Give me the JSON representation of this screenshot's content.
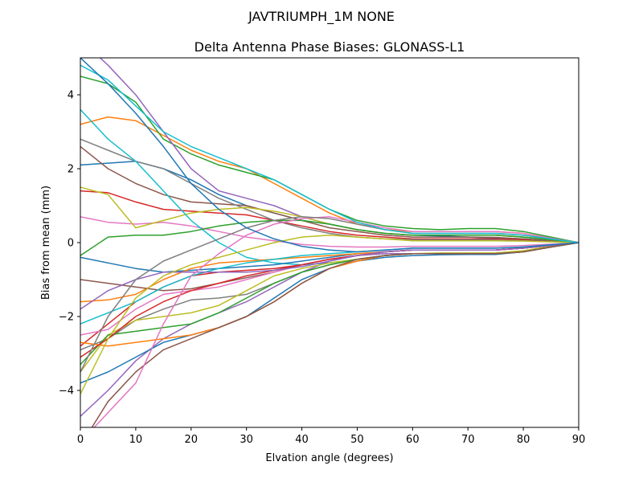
{
  "chart_data": {
    "type": "line",
    "suptitle": "JAVTRIUMPH_1M   NONE",
    "title": "Delta Antenna Phase Biases: GLONASS-L1",
    "xlabel": "Elvation angle (degrees)",
    "ylabel": "Bias from mean (mm)",
    "xlim": [
      0,
      90
    ],
    "ylim": [
      -5,
      5
    ],
    "x_ticks": [
      0,
      10,
      20,
      30,
      40,
      50,
      60,
      70,
      80,
      90
    ],
    "y_ticks": [
      -4,
      -2,
      0,
      2,
      4
    ],
    "y_tick_labels": [
      "−4",
      "−2",
      "0",
      "2",
      "4"
    ],
    "grid": false,
    "x": [
      0,
      5,
      10,
      15,
      20,
      25,
      30,
      35,
      40,
      45,
      50,
      55,
      60,
      65,
      70,
      75,
      80,
      85,
      90
    ],
    "series_colors": [
      "#1f77b4",
      "#ff7f0e",
      "#2ca02c",
      "#d62728",
      "#9467bd",
      "#8c564b",
      "#e377c2",
      "#7f7f7f",
      "#bcbd22",
      "#17becf"
    ],
    "series": [
      {
        "values": [
          2.1,
          2.15,
          2.2,
          2.0,
          1.7,
          1.3,
          1.0,
          0.8,
          0.6,
          0.5,
          0.35,
          0.25,
          0.2,
          0.18,
          0.15,
          0.12,
          0.1,
          0.05,
          0
        ]
      },
      {
        "values": [
          3.2,
          3.4,
          3.3,
          2.9,
          2.5,
          2.2,
          2.0,
          1.6,
          1.2,
          0.8,
          0.5,
          0.35,
          0.3,
          0.3,
          0.3,
          0.3,
          0.25,
          0.12,
          0
        ]
      },
      {
        "values": [
          4.5,
          4.3,
          3.8,
          2.8,
          2.4,
          2.1,
          1.9,
          1.7,
          1.3,
          0.9,
          0.6,
          0.45,
          0.38,
          0.35,
          0.38,
          0.38,
          0.3,
          0.15,
          0
        ]
      },
      {
        "values": [
          1.4,
          1.35,
          1.1,
          0.9,
          0.85,
          0.8,
          0.75,
          0.6,
          0.45,
          0.3,
          0.2,
          0.15,
          0.1,
          0.1,
          0.1,
          0.1,
          0.08,
          0.04,
          0
        ]
      },
      {
        "values": [
          5.5,
          4.8,
          4.0,
          3.0,
          2.0,
          1.4,
          1.2,
          1.0,
          0.7,
          0.5,
          0.35,
          0.25,
          0.2,
          0.2,
          0.2,
          0.2,
          0.15,
          0.08,
          0
        ]
      },
      {
        "values": [
          2.6,
          2.0,
          1.6,
          1.3,
          1.1,
          1.05,
          1.0,
          0.8,
          0.6,
          0.4,
          0.3,
          0.2,
          0.15,
          0.15,
          0.15,
          0.14,
          0.1,
          0.05,
          0
        ]
      },
      {
        "values": [
          0.7,
          0.55,
          0.5,
          0.55,
          0.45,
          0.3,
          0.15,
          0.05,
          -0.05,
          -0.1,
          -0.12,
          -0.12,
          -0.1,
          -0.1,
          -0.1,
          -0.1,
          -0.08,
          -0.04,
          0
        ]
      },
      {
        "values": [
          2.8,
          2.5,
          2.2,
          2.0,
          1.6,
          1.2,
          0.9,
          0.6,
          0.4,
          0.25,
          0.15,
          0.1,
          0.08,
          0.08,
          0.08,
          0.07,
          0.05,
          0.03,
          0
        ]
      },
      {
        "values": [
          1.5,
          1.3,
          0.4,
          0.6,
          0.8,
          0.9,
          0.95,
          0.85,
          0.7,
          0.5,
          0.35,
          0.25,
          0.2,
          0.2,
          0.2,
          0.2,
          0.15,
          0.08,
          0
        ]
      },
      {
        "values": [
          3.6,
          2.8,
          2.2,
          1.4,
          0.6,
          0.0,
          -0.4,
          -0.55,
          -0.6,
          -0.55,
          -0.45,
          -0.35,
          -0.3,
          -0.3,
          -0.3,
          -0.3,
          -0.25,
          -0.12,
          0
        ]
      },
      {
        "values": [
          -0.4,
          -0.55,
          -0.7,
          -0.8,
          -0.75,
          -0.7,
          -0.65,
          -0.6,
          -0.5,
          -0.4,
          -0.3,
          -0.25,
          -0.2,
          -0.2,
          -0.2,
          -0.2,
          -0.15,
          -0.08,
          0
        ]
      },
      {
        "values": [
          -1.6,
          -1.55,
          -1.4,
          -1.0,
          -0.7,
          -0.55,
          -0.5,
          -0.45,
          -0.4,
          -0.35,
          -0.3,
          -0.25,
          -0.2,
          -0.2,
          -0.2,
          -0.2,
          -0.15,
          -0.08,
          0
        ]
      },
      {
        "values": [
          -0.35,
          0.15,
          0.2,
          0.2,
          0.3,
          0.45,
          0.55,
          0.6,
          0.6,
          0.5,
          0.35,
          0.25,
          0.2,
          0.2,
          0.2,
          0.2,
          0.15,
          0.08,
          0
        ]
      },
      {
        "values": [
          -2.8,
          -2.2,
          -1.6,
          -1.2,
          -0.9,
          -0.8,
          -0.75,
          -0.7,
          -0.6,
          -0.45,
          -0.35,
          -0.25,
          -0.2,
          -0.2,
          -0.2,
          -0.2,
          -0.15,
          -0.08,
          0
        ]
      },
      {
        "values": [
          -4.7,
          -4.0,
          -3.2,
          -2.6,
          -2.2,
          -1.9,
          -1.6,
          -1.2,
          -0.8,
          -0.5,
          -0.35,
          -0.3,
          -0.3,
          -0.3,
          -0.3,
          -0.3,
          -0.25,
          -0.12,
          0
        ]
      },
      {
        "values": [
          -1.0,
          -1.1,
          -1.2,
          -1.3,
          -1.25,
          -1.1,
          -0.95,
          -0.8,
          -0.6,
          -0.45,
          -0.35,
          -0.25,
          -0.2,
          -0.2,
          -0.2,
          -0.2,
          -0.15,
          -0.08,
          0
        ]
      },
      {
        "values": [
          -2.5,
          -2.35,
          -1.8,
          -1.4,
          -1.3,
          -1.2,
          -1.0,
          -0.8,
          -0.6,
          -0.45,
          -0.35,
          -0.25,
          -0.2,
          -0.2,
          -0.2,
          -0.2,
          -0.15,
          -0.08,
          0
        ]
      },
      {
        "values": [
          -2.9,
          -2.6,
          -2.1,
          -1.8,
          -1.55,
          -1.5,
          -1.4,
          -1.1,
          -0.8,
          -0.6,
          -0.45,
          -0.35,
          -0.3,
          -0.3,
          -0.3,
          -0.3,
          -0.25,
          -0.12,
          0
        ]
      },
      {
        "values": [
          -3.5,
          -2.5,
          -2.1,
          -2.0,
          -1.9,
          -1.7,
          -1.3,
          -0.9,
          -0.7,
          -0.55,
          -0.45,
          -0.35,
          -0.3,
          -0.28,
          -0.28,
          -0.28,
          -0.22,
          -0.1,
          0
        ]
      },
      {
        "values": [
          -2.2,
          -1.9,
          -1.6,
          -1.2,
          -0.9,
          -0.7,
          -0.55,
          -0.45,
          -0.35,
          -0.3,
          -0.25,
          -0.2,
          -0.15,
          -0.15,
          -0.15,
          -0.15,
          -0.12,
          -0.06,
          0
        ]
      },
      {
        "values": [
          -3.8,
          -3.5,
          -3.1,
          -2.7,
          -2.5,
          -2.3,
          -2.0,
          -1.5,
          -1.0,
          -0.7,
          -0.5,
          -0.4,
          -0.35,
          -0.33,
          -0.32,
          -0.32,
          -0.25,
          -0.12,
          0
        ]
      },
      {
        "values": [
          -2.7,
          -2.8,
          -2.7,
          -2.6,
          -2.5,
          -2.3,
          -2.0,
          -1.6,
          -1.1,
          -0.7,
          -0.5,
          -0.35,
          -0.3,
          -0.3,
          -0.3,
          -0.3,
          -0.25,
          -0.12,
          0
        ]
      },
      {
        "values": [
          -3.3,
          -2.5,
          -2.4,
          -2.3,
          -2.2,
          -1.9,
          -1.5,
          -1.1,
          -0.8,
          -0.6,
          -0.45,
          -0.35,
          -0.3,
          -0.3,
          -0.3,
          -0.3,
          -0.25,
          -0.12,
          0
        ]
      },
      {
        "values": [
          -3.1,
          -2.6,
          -2.0,
          -1.6,
          -1.3,
          -1.1,
          -0.9,
          -0.75,
          -0.6,
          -0.45,
          -0.35,
          -0.25,
          -0.2,
          -0.2,
          -0.2,
          -0.2,
          -0.15,
          -0.08,
          0
        ]
      },
      {
        "values": [
          -1.8,
          -1.3,
          -1.0,
          -0.8,
          -0.8,
          -0.8,
          -0.8,
          -0.75,
          -0.65,
          -0.5,
          -0.35,
          -0.25,
          -0.2,
          -0.2,
          -0.2,
          -0.2,
          -0.15,
          -0.08,
          0
        ]
      },
      {
        "values": [
          -5.5,
          -4.3,
          -3.5,
          -2.9,
          -2.6,
          -2.3,
          -2.0,
          -1.6,
          -1.1,
          -0.7,
          -0.45,
          -0.35,
          -0.3,
          -0.3,
          -0.3,
          -0.3,
          -0.25,
          -0.12,
          0
        ]
      },
      {
        "values": [
          -5.4,
          -4.6,
          -3.8,
          -2.2,
          -0.9,
          -0.3,
          0.2,
          0.5,
          0.65,
          0.7,
          0.55,
          0.4,
          0.3,
          0.3,
          0.3,
          0.3,
          0.25,
          0.12,
          0
        ]
      },
      {
        "values": [
          -3.5,
          -2.0,
          -1.0,
          -0.5,
          -0.2,
          0.1,
          0.4,
          0.6,
          0.7,
          0.65,
          0.5,
          0.35,
          0.25,
          0.25,
          0.25,
          0.25,
          0.2,
          0.1,
          0
        ]
      },
      {
        "values": [
          -4.1,
          -2.6,
          -1.5,
          -0.9,
          -0.6,
          -0.4,
          -0.2,
          0.0,
          0.15,
          0.2,
          0.15,
          0.1,
          0.05,
          0.05,
          0.05,
          0.05,
          0.04,
          0.02,
          0
        ]
      },
      {
        "values": [
          4.8,
          4.4,
          3.7,
          3.0,
          2.6,
          2.3,
          2.0,
          1.7,
          1.3,
          0.9,
          0.55,
          0.35,
          0.25,
          0.25,
          0.25,
          0.25,
          0.2,
          0.1,
          0
        ]
      },
      {
        "values": [
          5.0,
          4.3,
          3.5,
          2.6,
          1.6,
          0.9,
          0.4,
          0.1,
          -0.1,
          -0.2,
          -0.25,
          -0.2,
          -0.15,
          -0.15,
          -0.15,
          -0.15,
          -0.12,
          -0.06,
          0
        ]
      }
    ]
  }
}
